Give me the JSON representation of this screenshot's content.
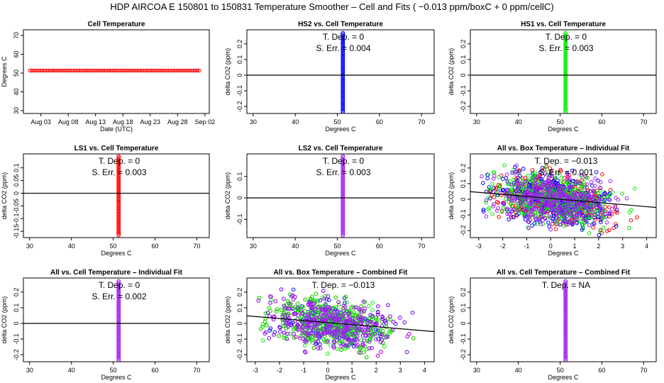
{
  "page_title": "HDP   AIRCOA E   150801 to 150831   Temperature Smoother – Cell and Fits ( −0.013  ppm/boxC +  0  ppm/cellC)",
  "colors": {
    "red": "#ff0000",
    "blue": "#0000ff",
    "green": "#00ee00",
    "purple": "#a020f0",
    "line": "#000000"
  },
  "chart_data": [
    {
      "id": "cell-temp",
      "type": "scatter",
      "title": "Cell Temperature",
      "xlabel": "Date (UTC)",
      "ylabel": "Degrees C",
      "x_ticks": [
        "Aug 03",
        "Aug 08",
        "Aug 13",
        "Aug 18",
        "Aug 23",
        "Aug 28",
        "Sep 02"
      ],
      "x_tick_days": [
        3,
        8,
        13,
        18,
        23,
        28,
        33
      ],
      "xlim": [
        -0.2,
        33.8
      ],
      "ylim": [
        28.5,
        73
      ],
      "y_ticks": [
        30,
        40,
        50,
        60,
        70
      ],
      "series": [
        {
          "name": "cell temperature",
          "color": "red",
          "x_range_days": [
            1,
            32
          ],
          "y": 51.3,
          "count": 90
        }
      ]
    },
    {
      "id": "hs2-cell",
      "type": "scatter",
      "title": "HS2 vs. Cell Temperature",
      "xlabel": "Degrees C",
      "ylabel": "delta CO2 (ppm)",
      "xlim": [
        28.5,
        73
      ],
      "ylim": [
        -0.245,
        0.29
      ],
      "x_ticks": [
        30,
        40,
        50,
        60,
        70
      ],
      "y_ticks": [
        -0.2,
        -0.1,
        0.0,
        0.1,
        0.2
      ],
      "annotations": [
        "T. Dep. =  0",
        "S. Err. =  0.004"
      ],
      "series": [
        {
          "name": "HS2",
          "color": "blue",
          "x": 51.3,
          "y_range": [
            -0.235,
            0.27
          ]
        }
      ],
      "fit_line": {
        "slope": 0,
        "intercept": 0
      }
    },
    {
      "id": "hs1-cell",
      "type": "scatter",
      "title": "HS1 vs. Cell Temperature",
      "xlabel": "Degrees C",
      "ylabel": "delta CO2 (ppm)",
      "xlim": [
        28.5,
        73
      ],
      "ylim": [
        -0.245,
        0.29
      ],
      "x_ticks": [
        30,
        40,
        50,
        60,
        70
      ],
      "y_ticks": [
        -0.2,
        -0.1,
        0.0,
        0.1,
        0.2
      ],
      "annotations": [
        "T. Dep. =  0",
        "S. Err. =  0.003"
      ],
      "series": [
        {
          "name": "HS1",
          "color": "green",
          "x": 51.3,
          "y_range": [
            -0.235,
            0.27
          ]
        }
      ],
      "fit_line": {
        "slope": 0,
        "intercept": 0
      }
    },
    {
      "id": "ls1-cell",
      "type": "scatter",
      "title": "LS1 vs. Cell Temperature",
      "xlabel": "Degrees C",
      "ylabel": "delta CO2 (ppm)",
      "xlim": [
        28.5,
        73
      ],
      "ylim": [
        -0.175,
        0.155
      ],
      "x_ticks": [
        30,
        40,
        50,
        60,
        70
      ],
      "y_ticks": [
        -0.15,
        -0.1,
        -0.05,
        0.0,
        0.05,
        0.1
      ],
      "annotations": [
        "T. Dep. =  0",
        "S. Err. =  0.003"
      ],
      "series": [
        {
          "name": "LS1",
          "color": "red",
          "x": 51.3,
          "y_range": [
            -0.165,
            0.145
          ]
        }
      ],
      "fit_line": {
        "slope": 0,
        "intercept": 0
      }
    },
    {
      "id": "ls2-cell",
      "type": "scatter",
      "title": "LS2 vs. Cell Temperature",
      "xlabel": "Degrees C",
      "ylabel": "delta CO2 (ppm)",
      "xlim": [
        28.5,
        73
      ],
      "ylim": [
        -0.185,
        0.205
      ],
      "x_ticks": [
        30,
        40,
        50,
        60,
        70
      ],
      "y_ticks": [
        -0.1,
        0.0,
        0.1
      ],
      "annotations": [
        "T. Dep. =  0",
        "S. Err. =  0.003"
      ],
      "series": [
        {
          "name": "LS2",
          "color": "purple",
          "x": 51.3,
          "y_range": [
            -0.175,
            0.195
          ]
        }
      ],
      "fit_line": {
        "slope": 0,
        "intercept": 0
      }
    },
    {
      "id": "all-box-individual",
      "type": "scatter",
      "title": "All vs. Box Temperature – Individual Fit",
      "xlabel": "Degrees C",
      "ylabel": "delta CO2 (ppm)",
      "xlim": [
        -3.35,
        4.4
      ],
      "ylim": [
        -0.245,
        0.29
      ],
      "x_ticks": [
        -3,
        -2,
        -1,
        0,
        1,
        2,
        3,
        4
      ],
      "y_ticks": [
        -0.2,
        -0.1,
        0.0,
        0.1,
        0.2
      ],
      "annotations": [
        "T. Dep. =  −0.013",
        "S. Err. =  0.001"
      ],
      "series": [
        {
          "name": "LS1",
          "color": "red",
          "n": 380
        },
        {
          "name": "HS2",
          "color": "blue",
          "n": 380
        },
        {
          "name": "HS1",
          "color": "green",
          "n": 380
        },
        {
          "name": "LS2",
          "color": "purple",
          "n": 380
        }
      ],
      "fit_line": {
        "slope": -0.013,
        "intercept": 0.005
      }
    },
    {
      "id": "all-cell-individual",
      "type": "scatter",
      "title": "All vs. Cell Temperature – Individual Fit",
      "xlabel": "Degrees C",
      "ylabel": "delta CO2 (ppm)",
      "xlim": [
        28.5,
        73
      ],
      "ylim": [
        -0.245,
        0.29
      ],
      "x_ticks": [
        30,
        40,
        50,
        60,
        70
      ],
      "y_ticks": [
        -0.2,
        -0.1,
        0.0,
        0.1,
        0.2
      ],
      "annotations": [
        "T. Dep. =  0",
        "S. Err. =  0.002"
      ],
      "series": [
        {
          "name": "all",
          "color": "purple",
          "x": 51.3,
          "y_range": [
            -0.235,
            0.27
          ]
        }
      ],
      "fit_line": {
        "slope": 0,
        "intercept": 0
      }
    },
    {
      "id": "all-box-combined",
      "type": "scatter",
      "title": "All vs. Box Temperature – Combined Fit",
      "xlabel": "Degrees C",
      "ylabel": "delta CO2 (ppm)",
      "xlim": [
        -3.35,
        4.4
      ],
      "ylim": [
        -0.245,
        0.29
      ],
      "x_ticks": [
        -3,
        -2,
        -1,
        0,
        1,
        2,
        3,
        4
      ],
      "y_ticks": [
        -0.2,
        -0.1,
        0.0,
        0.1,
        0.2
      ],
      "annotations": [
        "T. Dep. =  −0.013"
      ],
      "series": [
        {
          "name": "LS1",
          "color": "red",
          "n": 380
        },
        {
          "name": "HS2",
          "color": "blue",
          "n": 380
        },
        {
          "name": "HS1",
          "color": "green",
          "n": 380
        },
        {
          "name": "LS2",
          "color": "purple",
          "n": 380
        }
      ],
      "fit_line": {
        "slope": -0.013,
        "intercept": 0.005
      }
    },
    {
      "id": "all-cell-combined",
      "type": "scatter",
      "title": "All vs. Cell Temperature – Combined Fit",
      "xlabel": "Degrees C",
      "ylabel": "delta CO2 (ppm)",
      "xlim": [
        28.5,
        73
      ],
      "ylim": [
        -0.245,
        0.29
      ],
      "x_ticks": [
        30,
        40,
        50,
        60,
        70
      ],
      "y_ticks": [
        -0.2,
        -0.1,
        0.0,
        0.1,
        0.2
      ],
      "annotations": [
        "T. Dep. =  NA"
      ],
      "series": [
        {
          "name": "all",
          "color": "purple",
          "x": 51.3,
          "y_range": [
            -0.235,
            0.27
          ]
        }
      ],
      "fit_line": null
    }
  ]
}
